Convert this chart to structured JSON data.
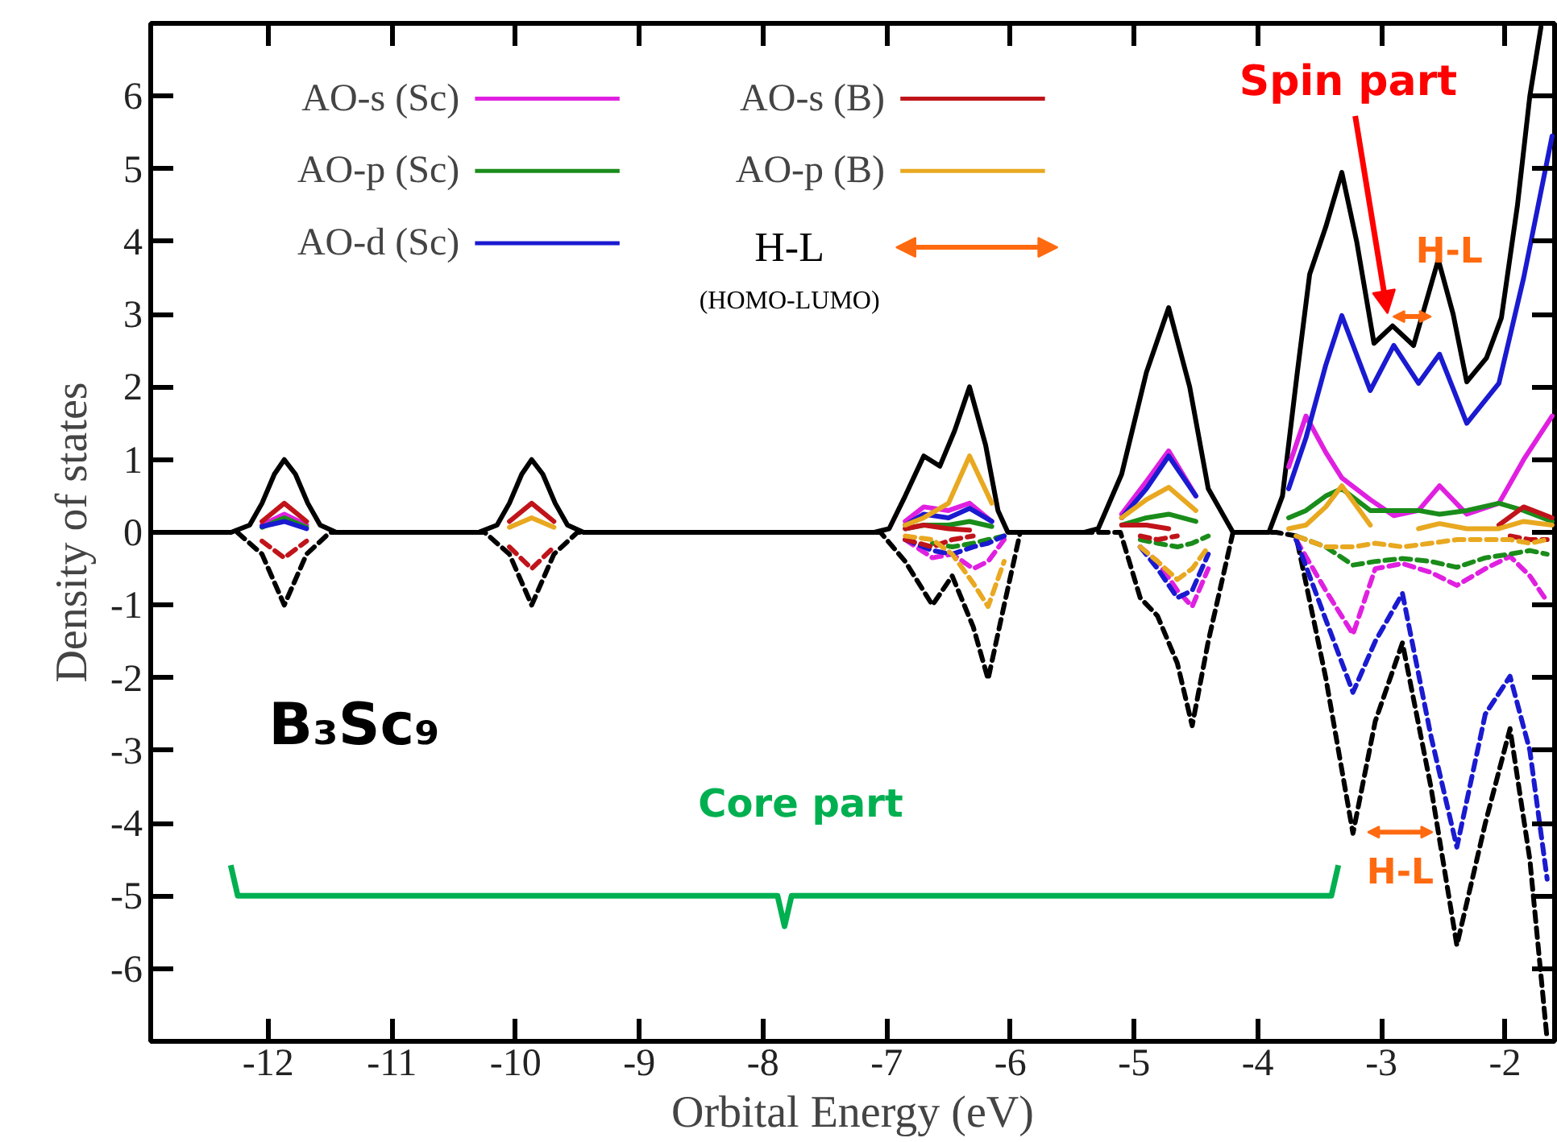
{
  "chart_data": {
    "type": "line",
    "xlabel": "Orbital Energy (eV)",
    "ylabel": "Density of states",
    "xlim": [
      -12.95,
      -1.6
    ],
    "xticks": [
      -12,
      -11,
      -10,
      -9,
      -8,
      -7,
      -6,
      -5,
      -4,
      -3,
      -2
    ],
    "ylim": [
      -7,
      7
    ],
    "yticks": [
      -6,
      -5,
      -4,
      -3,
      -2,
      -1,
      0,
      1,
      2,
      3,
      4,
      5,
      6
    ],
    "legend": "top left",
    "grid": false,
    "series": [
      {
        "color": "#000000",
        "line_style": "solid",
        "x": [
          -12.95,
          -12.3,
          -12.15,
          -12.05,
          -11.95,
          -11.87,
          -11.78,
          -11.68,
          -11.58,
          -11.45,
          -10.3,
          -10.15,
          -10.05,
          -9.95,
          -9.87,
          -9.78,
          -9.68,
          -9.58,
          -9.45,
          -7.1,
          -6.98,
          -6.85,
          -6.7,
          -6.57,
          -6.45,
          -6.33,
          -6.2,
          -6.1,
          -6.02,
          -5.4,
          -5.29,
          -5.1,
          -4.9,
          -4.72,
          -4.55,
          -4.4,
          -4.2,
          -3.91,
          -3.8,
          -3.68,
          -3.58,
          -3.45,
          -3.32,
          -3.2,
          -3.06,
          -2.91,
          -2.74,
          -2.54,
          -2.42,
          -2.31,
          -2.15,
          -2.03,
          -1.9,
          -1.8,
          -1.71
        ],
        "values": [
          0,
          0,
          0.1,
          0.4,
          0.8,
          1.0,
          0.8,
          0.4,
          0.1,
          0,
          0,
          0.1,
          0.4,
          0.8,
          1.0,
          0.8,
          0.4,
          0.1,
          0,
          0,
          0.05,
          0.5,
          1.05,
          0.91,
          1.4,
          2.0,
          1.2,
          0.3,
          0,
          0,
          0.05,
          0.8,
          2.2,
          3.09,
          2.0,
          0.6,
          0,
          0,
          0.5,
          2.2,
          3.55,
          4.2,
          4.95,
          4.0,
          2.6,
          2.84,
          2.57,
          3.75,
          3.0,
          2.07,
          2.4,
          2.95,
          4.5,
          6.0,
          6.95
        ]
      },
      {
        "color": "#000000",
        "line_style": "dashed",
        "x": [
          -12.25,
          -12.05,
          -11.87,
          -11.69,
          -11.5,
          -10.25,
          -10.05,
          -9.87,
          -9.69,
          -9.5,
          -7.05,
          -6.85,
          -6.63,
          -6.47,
          -6.3,
          -6.18,
          -6.05,
          -5.92,
          -5.3,
          -5.11,
          -4.95,
          -4.81,
          -4.65,
          -4.53,
          -4.4,
          -4.2,
          -3.85,
          -3.69,
          -3.45,
          -3.23,
          -3.05,
          -2.83,
          -2.6,
          -2.39,
          -2.16,
          -1.96,
          -1.8,
          -1.66
        ],
        "values": [
          0,
          -0.3,
          -1.0,
          -0.3,
          0,
          0,
          -0.3,
          -1.0,
          -0.3,
          0,
          0,
          -0.4,
          -1.0,
          -0.6,
          -1.3,
          -2.02,
          -1.0,
          0,
          0,
          0,
          -0.9,
          -1.15,
          -1.8,
          -2.66,
          -1.5,
          0,
          0,
          -0.05,
          -2.0,
          -4.14,
          -2.6,
          -1.52,
          -3.5,
          -5.68,
          -4.0,
          -2.7,
          -4.5,
          -6.98
        ]
      },
      {
        "name": "AO-s (Sc)",
        "color": "#e020e0",
        "x": [
          -12.05,
          -11.87,
          -11.69,
          -11.5,
          -6.85,
          -6.7,
          -6.5,
          -6.33,
          -6.15,
          -5.95,
          -5.1,
          -4.9,
          -4.72,
          -4.5,
          -4.2,
          -3.75,
          -3.61,
          -3.45,
          -3.32,
          -3.09,
          -2.9,
          -2.7,
          -2.53,
          -2.31,
          -2.05,
          -1.85,
          -1.62
        ],
        "values": [
          0.1,
          0.25,
          0.1,
          null,
          0.15,
          0.35,
          0.3,
          0.4,
          0.15,
          null,
          0.25,
          0.7,
          1.12,
          0.5,
          null,
          0.9,
          1.6,
          1.1,
          0.75,
          0.45,
          0.23,
          0.3,
          0.64,
          0.25,
          0.4,
          1.0,
          1.6
        ]
      },
      {
        "name": "AO-p (Sc)",
        "color": "#1a8c1a",
        "x": [
          -12.05,
          -11.87,
          -11.69,
          -11.5,
          -6.85,
          -6.7,
          -6.5,
          -6.33,
          -6.15,
          -5.95,
          -5.1,
          -4.9,
          -4.72,
          -4.5,
          -4.2,
          -3.75,
          -3.61,
          -3.45,
          -3.32,
          -3.09,
          -2.9,
          -2.7,
          -2.53,
          -2.31,
          -2.05,
          -1.85,
          -1.62
        ],
        "values": [
          0.07,
          0.2,
          0.07,
          null,
          0.05,
          0.1,
          0.1,
          0.15,
          0.08,
          null,
          0.1,
          0.2,
          0.25,
          0.15,
          null,
          0.2,
          0.3,
          0.5,
          0.6,
          0.3,
          0.3,
          0.3,
          0.25,
          0.3,
          0.4,
          0.3,
          0.15
        ]
      },
      {
        "name": "AO-d (Sc)",
        "color": "#1a1ad0",
        "x": [
          -12.05,
          -11.87,
          -11.69,
          -11.5,
          -6.85,
          -6.7,
          -6.5,
          -6.33,
          -6.15,
          -5.95,
          -5.1,
          -4.9,
          -4.72,
          -4.5,
          -4.2,
          -3.75,
          -3.61,
          -3.45,
          -3.32,
          -3.09,
          -2.9,
          -2.7,
          -2.53,
          -2.31,
          -2.05,
          -1.85,
          -1.62
        ],
        "values": [
          0.08,
          0.15,
          0.05,
          null,
          0.1,
          0.25,
          0.2,
          0.33,
          0.15,
          null,
          0.2,
          0.6,
          1.05,
          0.5,
          null,
          0.6,
          1.3,
          2.3,
          2.98,
          1.95,
          2.57,
          2.05,
          2.45,
          1.5,
          2.05,
          3.5,
          5.45
        ]
      },
      {
        "name": "AO-s (B)",
        "color": "#c0141a",
        "x": [
          -12.05,
          -11.87,
          -11.69,
          -11.5,
          -10.05,
          -9.87,
          -9.69,
          -9.5,
          -6.85,
          -6.7,
          -6.5,
          -6.33,
          -6.15,
          -5.1,
          -4.9,
          -4.72,
          -4.5,
          -2.05,
          -1.85,
          -1.62
        ],
        "values": [
          0.15,
          0.4,
          0.15,
          null,
          0.15,
          0.4,
          0.15,
          null,
          0.05,
          0.1,
          0.05,
          0.03,
          null,
          0.1,
          0.1,
          0.05,
          null,
          0.1,
          0.35,
          0.2
        ]
      },
      {
        "name": "AO-p (B)",
        "color": "#e8a820",
        "x": [
          -10.05,
          -9.87,
          -9.69,
          -9.5,
          -6.85,
          -6.7,
          -6.5,
          -6.33,
          -6.15,
          -5.95,
          -5.1,
          -4.9,
          -4.72,
          -4.5,
          -4.2,
          -3.75,
          -3.61,
          -3.45,
          -3.32,
          -3.09,
          -2.9,
          -2.7,
          -2.53,
          -2.31,
          -2.05,
          -1.85,
          -1.62
        ],
        "values": [
          0.07,
          0.2,
          0.07,
          null,
          0.1,
          0.2,
          0.4,
          1.05,
          0.4,
          null,
          0.2,
          0.45,
          0.62,
          0.3,
          null,
          0.05,
          0.1,
          0.35,
          0.64,
          0.1,
          null,
          0.05,
          0.12,
          0.05,
          0.05,
          0.15,
          0.1
        ]
      },
      {
        "color": "#e020e0",
        "line_style": "dashed",
        "x": [
          -6.85,
          -6.63,
          -6.47,
          -6.3,
          -6.18,
          -6.05,
          -5.92,
          -4.95,
          -4.81,
          -4.65,
          -4.53,
          -4.4,
          -4.2,
          -3.69,
          -3.45,
          -3.23,
          -3.05,
          -2.83,
          -2.6,
          -2.39,
          -2.16,
          -1.96,
          -1.8,
          -1.66
        ],
        "values": [
          -0.1,
          -0.35,
          -0.3,
          -0.5,
          -0.4,
          -0.1,
          null,
          -0.2,
          -0.4,
          -0.8,
          -1.02,
          -0.5,
          null,
          -0.1,
          -0.8,
          -1.4,
          -0.5,
          -0.43,
          -0.55,
          -0.73,
          -0.5,
          -0.33,
          -0.6,
          -0.95
        ]
      },
      {
        "color": "#1a8c1a",
        "line_style": "dashed",
        "x": [
          -6.63,
          -6.47,
          -6.3,
          -6.18,
          -6.05,
          -5.92,
          -4.95,
          -4.81,
          -4.65,
          -4.53,
          -4.4,
          -4.2,
          -3.69,
          -3.45,
          -3.23,
          -3.05,
          -2.83,
          -2.6,
          -2.39,
          -2.16,
          -1.96,
          -1.8,
          -1.66
        ],
        "values": [
          -0.15,
          -0.2,
          -0.15,
          -0.1,
          -0.05,
          null,
          -0.1,
          -0.15,
          -0.2,
          -0.15,
          -0.05,
          null,
          -0.05,
          -0.2,
          -0.45,
          -0.4,
          -0.36,
          -0.4,
          -0.48,
          -0.35,
          -0.3,
          -0.25,
          -0.3
        ]
      },
      {
        "color": "#1a1ad0",
        "line_style": "dashed",
        "x": [
          -6.85,
          -6.63,
          -6.47,
          -6.3,
          -6.18,
          -6.05,
          -5.92,
          -4.95,
          -4.81,
          -4.65,
          -4.53,
          -4.4,
          -4.2,
          -3.69,
          -3.45,
          -3.23,
          -3.05,
          -2.83,
          -2.6,
          -2.39,
          -2.16,
          -1.96,
          -1.8,
          -1.66
        ],
        "values": [
          -0.1,
          -0.25,
          -0.3,
          -0.2,
          -0.15,
          -0.05,
          null,
          -0.2,
          -0.5,
          -0.9,
          -0.8,
          -0.3,
          null,
          -0.1,
          -1.2,
          -2.2,
          -1.5,
          -0.84,
          -2.8,
          -4.33,
          -2.5,
          -1.98,
          -3.0,
          -4.77
        ]
      },
      {
        "color": "#c0141a",
        "line_style": "dashed",
        "x": [
          -12.05,
          -11.87,
          -11.69,
          -11.5,
          -10.05,
          -9.87,
          -9.69,
          -9.5,
          -6.85,
          -6.63,
          -6.47,
          -6.3,
          -6.18,
          -4.95,
          -4.81,
          -4.65,
          -4.53,
          -1.96,
          -1.8,
          -1.66
        ],
        "values": [
          -0.12,
          -0.35,
          -0.12,
          null,
          -0.2,
          -0.5,
          -0.2,
          null,
          -0.1,
          -0.2,
          -0.1,
          -0.05,
          null,
          -0.05,
          -0.1,
          -0.05,
          null,
          -0.05,
          -0.1,
          -0.1
        ]
      },
      {
        "color": "#e8a820",
        "line_style": "dashed",
        "x": [
          -6.85,
          -6.63,
          -6.47,
          -6.3,
          -6.18,
          -6.05,
          -5.92,
          -4.95,
          -4.81,
          -4.65,
          -4.53,
          -4.4,
          -4.2,
          -3.69,
          -3.45,
          -3.23,
          -3.05,
          -2.83,
          -2.6,
          -2.39,
          -2.16,
          -1.96,
          -1.8,
          -1.66
        ],
        "values": [
          -0.05,
          -0.1,
          -0.3,
          -0.7,
          -1.02,
          -0.4,
          null,
          -0.2,
          -0.4,
          -0.65,
          -0.5,
          -0.2,
          null,
          -0.05,
          -0.2,
          -0.2,
          -0.15,
          -0.2,
          -0.15,
          -0.1,
          -0.1,
          -0.1,
          -0.15,
          -0.1
        ]
      }
    ],
    "annotations": [
      "B₃Sc₉",
      "H-L",
      "(HOMO-LUMO)",
      "Core part",
      "Spin part",
      "H-L",
      "H-L"
    ]
  }
}
